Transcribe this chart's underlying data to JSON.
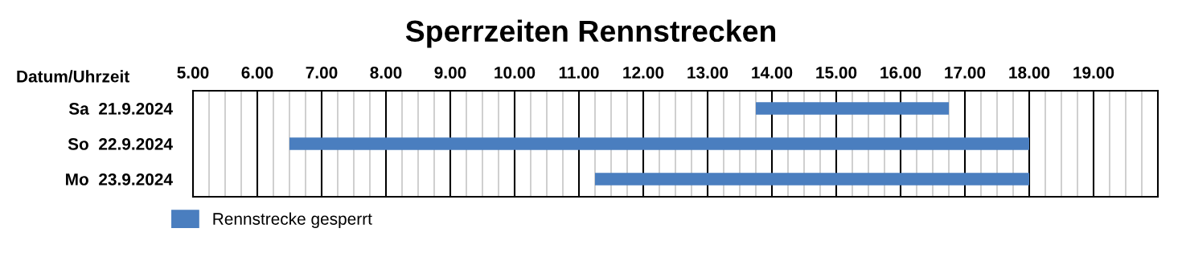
{
  "chart_data": {
    "type": "bar",
    "orientation": "horizontal",
    "title": "Sperrzeiten Rennstrecken",
    "ylabel": "Datum/Uhrzeit",
    "categories": [
      "Sa  21.9.2024",
      "So  22.9.2024",
      "Mo  23.9.2024"
    ],
    "series": [
      {
        "name": "Rennstrecke gesperrt",
        "color": "#4a7ebf",
        "values": [
          3,
          11.5,
          6.75
        ],
        "base": [
          13.75,
          6.5,
          11.25
        ]
      }
    ],
    "xlim": [
      5,
      20
    ],
    "xticks": [
      {
        "value": 5,
        "label": "5.00"
      },
      {
        "value": 6,
        "label": "6.00"
      },
      {
        "value": 7,
        "label": "7.00"
      },
      {
        "value": 8,
        "label": "8.00"
      },
      {
        "value": 9,
        "label": "9.00"
      },
      {
        "value": 10,
        "label": "10.00"
      },
      {
        "value": 11,
        "label": "11.00"
      },
      {
        "value": 12,
        "label": "12.00"
      },
      {
        "value": 13,
        "label": "13.00"
      },
      {
        "value": 14,
        "label": "14.00"
      },
      {
        "value": 15,
        "label": "15.00"
      },
      {
        "value": 16,
        "label": "16.00"
      },
      {
        "value": 17,
        "label": "17.00"
      },
      {
        "value": 18,
        "label": "18.00"
      },
      {
        "value": 19,
        "label": "19.00"
      }
    ],
    "grid": "x",
    "legend": "bottom"
  }
}
